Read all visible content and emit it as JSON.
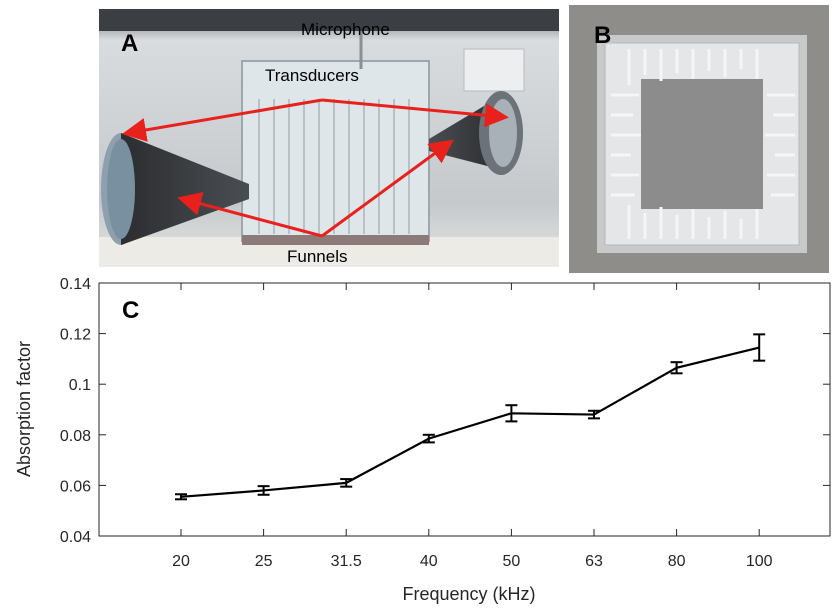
{
  "panels": {
    "a": {
      "letter": "A",
      "microphone": "Microphone",
      "transducers": "Transducers",
      "funnels": "Funnels"
    },
    "b": {
      "letter": "B"
    },
    "c": {
      "letter": "C"
    }
  },
  "colors": {
    "arrow": "#e8211c",
    "line": "#000000",
    "axis": "#262626"
  },
  "chart_data": {
    "type": "line",
    "categories": [
      "20",
      "25",
      "31.5",
      "40",
      "50",
      "63",
      "80",
      "100"
    ],
    "values": [
      0.0555,
      0.058,
      0.061,
      0.0785,
      0.0885,
      0.088,
      0.1065,
      0.1145
    ],
    "errors": [
      0.001,
      0.0017,
      0.0015,
      0.0015,
      0.0032,
      0.0015,
      0.0022,
      0.0052
    ],
    "xlabel": "Frequency (kHz)",
    "ylabel": "Absorption factor",
    "ylim": [
      0.04,
      0.14
    ],
    "yticks": [
      "0.04",
      "0.06",
      "0.08",
      "0.1",
      "0.12",
      "0.14"
    ],
    "grid": false
  }
}
